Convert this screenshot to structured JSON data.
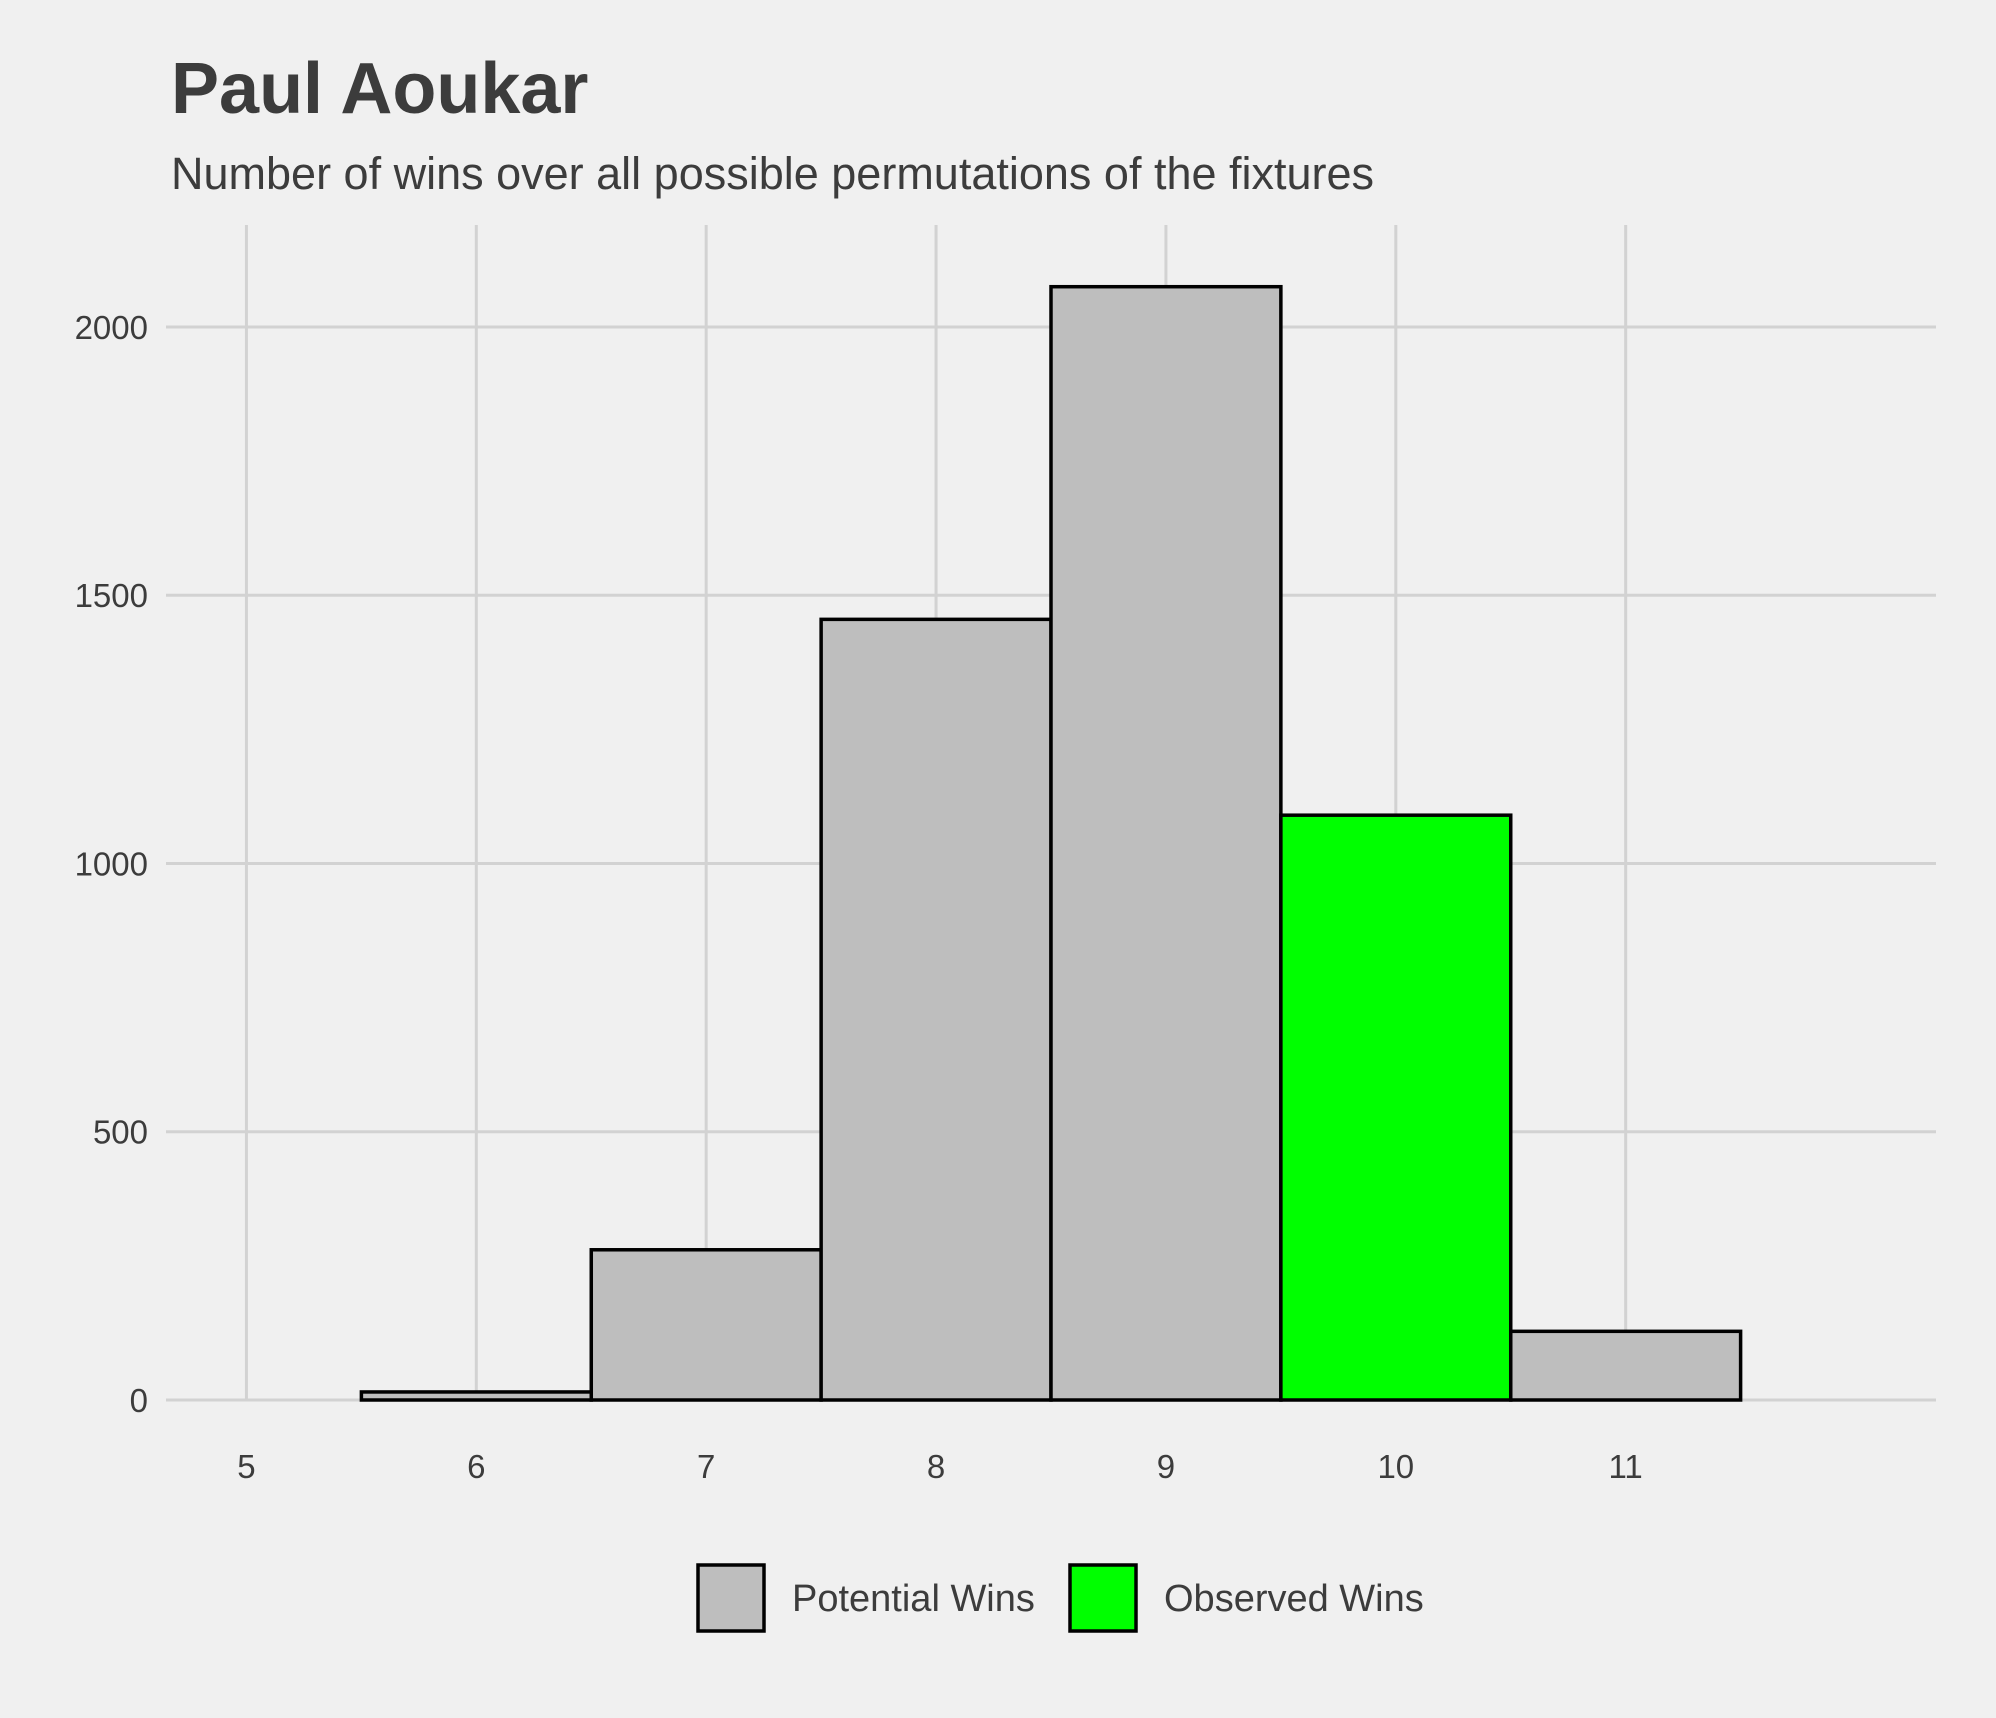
{
  "chart_data": {
    "type": "bar",
    "title": "Paul Aoukar",
    "subtitle": "Number of wins over all possible permutations of the fixtures",
    "xlabel": "",
    "ylabel": "",
    "x_ticks": [
      "5",
      "6",
      "7",
      "8",
      "9",
      "10",
      "11"
    ],
    "y_ticks": [
      "0",
      "500",
      "1000",
      "1500",
      "2000"
    ],
    "xlim": [
      4.65,
      12.35
    ],
    "ylim": [
      0,
      2190
    ],
    "grid": true,
    "legend_position": "bottom",
    "bars": [
      {
        "x": 6,
        "value": 15,
        "series": "Potential Wins"
      },
      {
        "x": 7,
        "value": 280,
        "series": "Potential Wins"
      },
      {
        "x": 8,
        "value": 1455,
        "series": "Potential Wins"
      },
      {
        "x": 9,
        "value": 2075,
        "series": "Potential Wins"
      },
      {
        "x": 10,
        "value": 1090,
        "series": "Observed Wins"
      },
      {
        "x": 11,
        "value": 128,
        "series": "Potential Wins"
      }
    ],
    "series": [
      {
        "name": "Potential Wins",
        "color": "#bebebe"
      },
      {
        "name": "Observed Wins",
        "color": "#00ff00"
      }
    ],
    "bar_outline_color": "#000000",
    "background_color": "#f0f0f0",
    "grid_color": "#d2d2d2"
  }
}
